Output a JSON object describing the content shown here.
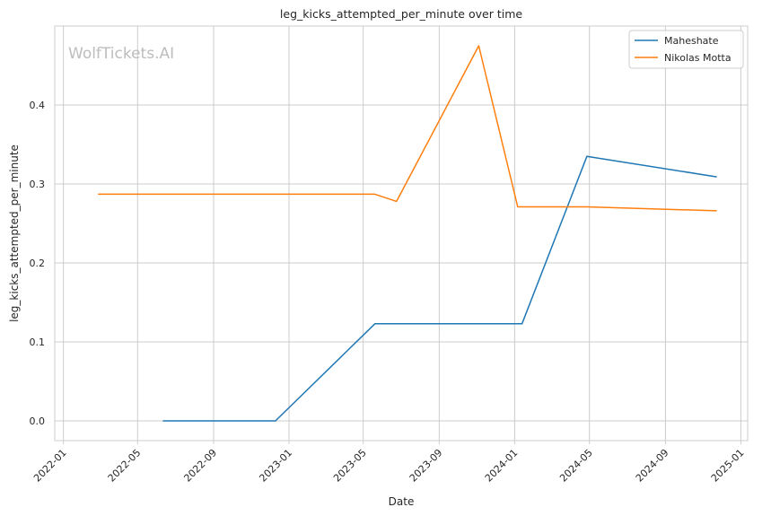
{
  "watermark": "WolfTickets.AI",
  "chart_data": {
    "type": "line",
    "title": "leg_kicks_attempted_per_minute over time",
    "xlabel": "Date",
    "ylabel": "leg_kicks_attempted_per_minute",
    "x_type": "date",
    "xlim": [
      "2021-12-18",
      "2025-01-12"
    ],
    "ylim": [
      -0.025,
      0.5
    ],
    "x_ticks": [
      "2022-01",
      "2022-05",
      "2022-09",
      "2023-01",
      "2023-05",
      "2023-09",
      "2024-01",
      "2024-05",
      "2024-09",
      "2025-01"
    ],
    "y_ticks": [
      "0.0",
      "0.1",
      "0.2",
      "0.3",
      "0.4"
    ],
    "grid": true,
    "legend_position": "top-right",
    "series": [
      {
        "name": "Maheshate",
        "color": "#1f77b4",
        "x": [
          "2022-06-11",
          "2022-12-10",
          "2023-05-20",
          "2024-01-13",
          "2024-04-27",
          "2024-11-23"
        ],
        "y": [
          0.0,
          0.0,
          0.123,
          0.123,
          0.335,
          0.309
        ]
      },
      {
        "name": "Nikolas Motta",
        "color": "#ff7f0e",
        "x": [
          "2022-02-26",
          "2023-05-20",
          "2023-06-24",
          "2023-11-04",
          "2024-01-06",
          "2024-04-27",
          "2024-11-23"
        ],
        "y": [
          0.287,
          0.287,
          0.278,
          0.475,
          0.271,
          0.271,
          0.266
        ]
      }
    ]
  }
}
